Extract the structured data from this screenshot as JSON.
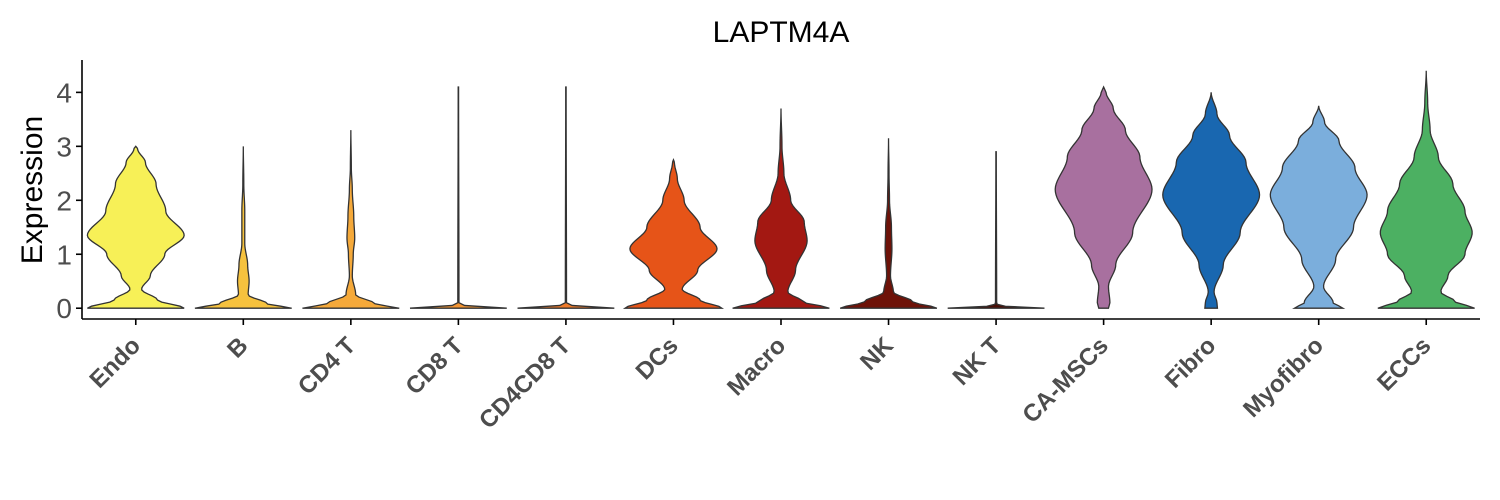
{
  "chart_data": {
    "type": "violin",
    "title": "LAPTM4A",
    "xlabel": "",
    "ylabel": "Expression",
    "ylim": [
      -0.2,
      4.6
    ],
    "yticks": [
      0,
      1,
      2,
      3,
      4
    ],
    "grid": false,
    "legend": "none",
    "categories": [
      {
        "name": "Endo",
        "color": "#F7F057",
        "max": 3.0,
        "profile": [
          [
            0,
            1.0
          ],
          [
            0.15,
            0.45
          ],
          [
            0.35,
            0.12
          ],
          [
            0.6,
            0.3
          ],
          [
            1.0,
            0.6
          ],
          [
            1.35,
            1.0
          ],
          [
            1.8,
            0.62
          ],
          [
            2.3,
            0.42
          ],
          [
            2.7,
            0.2
          ],
          [
            2.95,
            0.04
          ],
          [
            3.0,
            0
          ]
        ]
      },
      {
        "name": "B",
        "color": "#F6C23E",
        "max": 3.0,
        "profile": [
          [
            0,
            1.0
          ],
          [
            0.08,
            0.5
          ],
          [
            0.25,
            0.1
          ],
          [
            0.5,
            0.12
          ],
          [
            0.8,
            0.09
          ],
          [
            1.2,
            0.03
          ],
          [
            1.8,
            0.03
          ],
          [
            2.3,
            0.01
          ],
          [
            3.0,
            0
          ]
        ]
      },
      {
        "name": "CD4 T",
        "color": "#F5A93A",
        "max": 3.3,
        "profile": [
          [
            0,
            1.0
          ],
          [
            0.08,
            0.5
          ],
          [
            0.25,
            0.1
          ],
          [
            0.6,
            0.03
          ],
          [
            1.0,
            0.05
          ],
          [
            1.3,
            0.08
          ],
          [
            1.7,
            0.06
          ],
          [
            2.2,
            0.03
          ],
          [
            2.6,
            0.01
          ],
          [
            3.3,
            0
          ]
        ]
      },
      {
        "name": "CD8 T",
        "color": "#F39432",
        "max": 4.1,
        "profile": [
          [
            0,
            1.0
          ],
          [
            0.03,
            0.2
          ],
          [
            0.08,
            0.012
          ],
          [
            4.1,
            0.004
          ]
        ]
      },
      {
        "name": "CD4CD8 T",
        "color": "#EE7A2A",
        "max": 4.1,
        "profile": [
          [
            0,
            1.0
          ],
          [
            0.03,
            0.2
          ],
          [
            0.08,
            0.012
          ],
          [
            4.1,
            0.004
          ]
        ]
      },
      {
        "name": "DCs",
        "color": "#E65418",
        "max": 2.75,
        "profile": [
          [
            0,
            1.0
          ],
          [
            0.15,
            0.55
          ],
          [
            0.35,
            0.18
          ],
          [
            0.7,
            0.5
          ],
          [
            1.1,
            0.9
          ],
          [
            1.5,
            0.55
          ],
          [
            2.0,
            0.22
          ],
          [
            2.4,
            0.08
          ],
          [
            2.7,
            0.02
          ],
          [
            2.75,
            0
          ]
        ]
      },
      {
        "name": "Macro",
        "color": "#A31812",
        "max": 3.7,
        "profile": [
          [
            0,
            1.0
          ],
          [
            0.12,
            0.45
          ],
          [
            0.3,
            0.14
          ],
          [
            0.7,
            0.3
          ],
          [
            1.25,
            0.54
          ],
          [
            1.6,
            0.48
          ],
          [
            2.0,
            0.2
          ],
          [
            2.5,
            0.06
          ],
          [
            3.0,
            0.02
          ],
          [
            3.7,
            0
          ]
        ]
      },
      {
        "name": "NK",
        "color": "#6E1208",
        "max": 3.15,
        "profile": [
          [
            0,
            1.0
          ],
          [
            0.12,
            0.5
          ],
          [
            0.3,
            0.1
          ],
          [
            0.6,
            0.04
          ],
          [
            1.1,
            0.07
          ],
          [
            1.5,
            0.06
          ],
          [
            2.0,
            0.02
          ],
          [
            2.5,
            0.01
          ],
          [
            3.15,
            0
          ]
        ]
      },
      {
        "name": "NK T",
        "color": "#4A0D05",
        "max": 2.9,
        "profile": [
          [
            0,
            1.0
          ],
          [
            0.03,
            0.2
          ],
          [
            0.08,
            0.012
          ],
          [
            2.9,
            0.004
          ]
        ]
      },
      {
        "name": "CA-MSCs",
        "color": "#A8709F",
        "max": 4.1,
        "profile": [
          [
            0,
            0.1
          ],
          [
            0.1,
            0.13
          ],
          [
            0.4,
            0.1
          ],
          [
            0.8,
            0.25
          ],
          [
            1.4,
            0.6
          ],
          [
            2.2,
            1.0
          ],
          [
            2.8,
            0.75
          ],
          [
            3.3,
            0.45
          ],
          [
            3.7,
            0.2
          ],
          [
            4.0,
            0.05
          ],
          [
            4.1,
            0
          ]
        ]
      },
      {
        "name": "Fibro",
        "color": "#1967B0",
        "max": 4.0,
        "profile": [
          [
            0,
            0.13
          ],
          [
            0.1,
            0.12
          ],
          [
            0.3,
            0.06
          ],
          [
            0.8,
            0.25
          ],
          [
            1.4,
            0.6
          ],
          [
            2.1,
            1.0
          ],
          [
            2.7,
            0.72
          ],
          [
            3.2,
            0.38
          ],
          [
            3.6,
            0.12
          ],
          [
            4.0,
            0
          ]
        ]
      },
      {
        "name": "Myofibro",
        "color": "#7BAEDC",
        "max": 3.75,
        "profile": [
          [
            0,
            0.5
          ],
          [
            0.1,
            0.3
          ],
          [
            0.4,
            0.1
          ],
          [
            0.9,
            0.35
          ],
          [
            1.5,
            0.72
          ],
          [
            2.1,
            1.0
          ],
          [
            2.6,
            0.75
          ],
          [
            3.1,
            0.42
          ],
          [
            3.45,
            0.12
          ],
          [
            3.75,
            0
          ]
        ]
      },
      {
        "name": "ECCs",
        "color": "#4CB062",
        "max": 4.4,
        "profile": [
          [
            0,
            1.0
          ],
          [
            0.12,
            0.6
          ],
          [
            0.3,
            0.3
          ],
          [
            0.6,
            0.45
          ],
          [
            1.0,
            0.8
          ],
          [
            1.4,
            0.95
          ],
          [
            1.8,
            0.8
          ],
          [
            2.3,
            0.55
          ],
          [
            2.8,
            0.25
          ],
          [
            3.3,
            0.08
          ],
          [
            3.8,
            0.03
          ],
          [
            4.4,
            0
          ]
        ]
      }
    ]
  }
}
